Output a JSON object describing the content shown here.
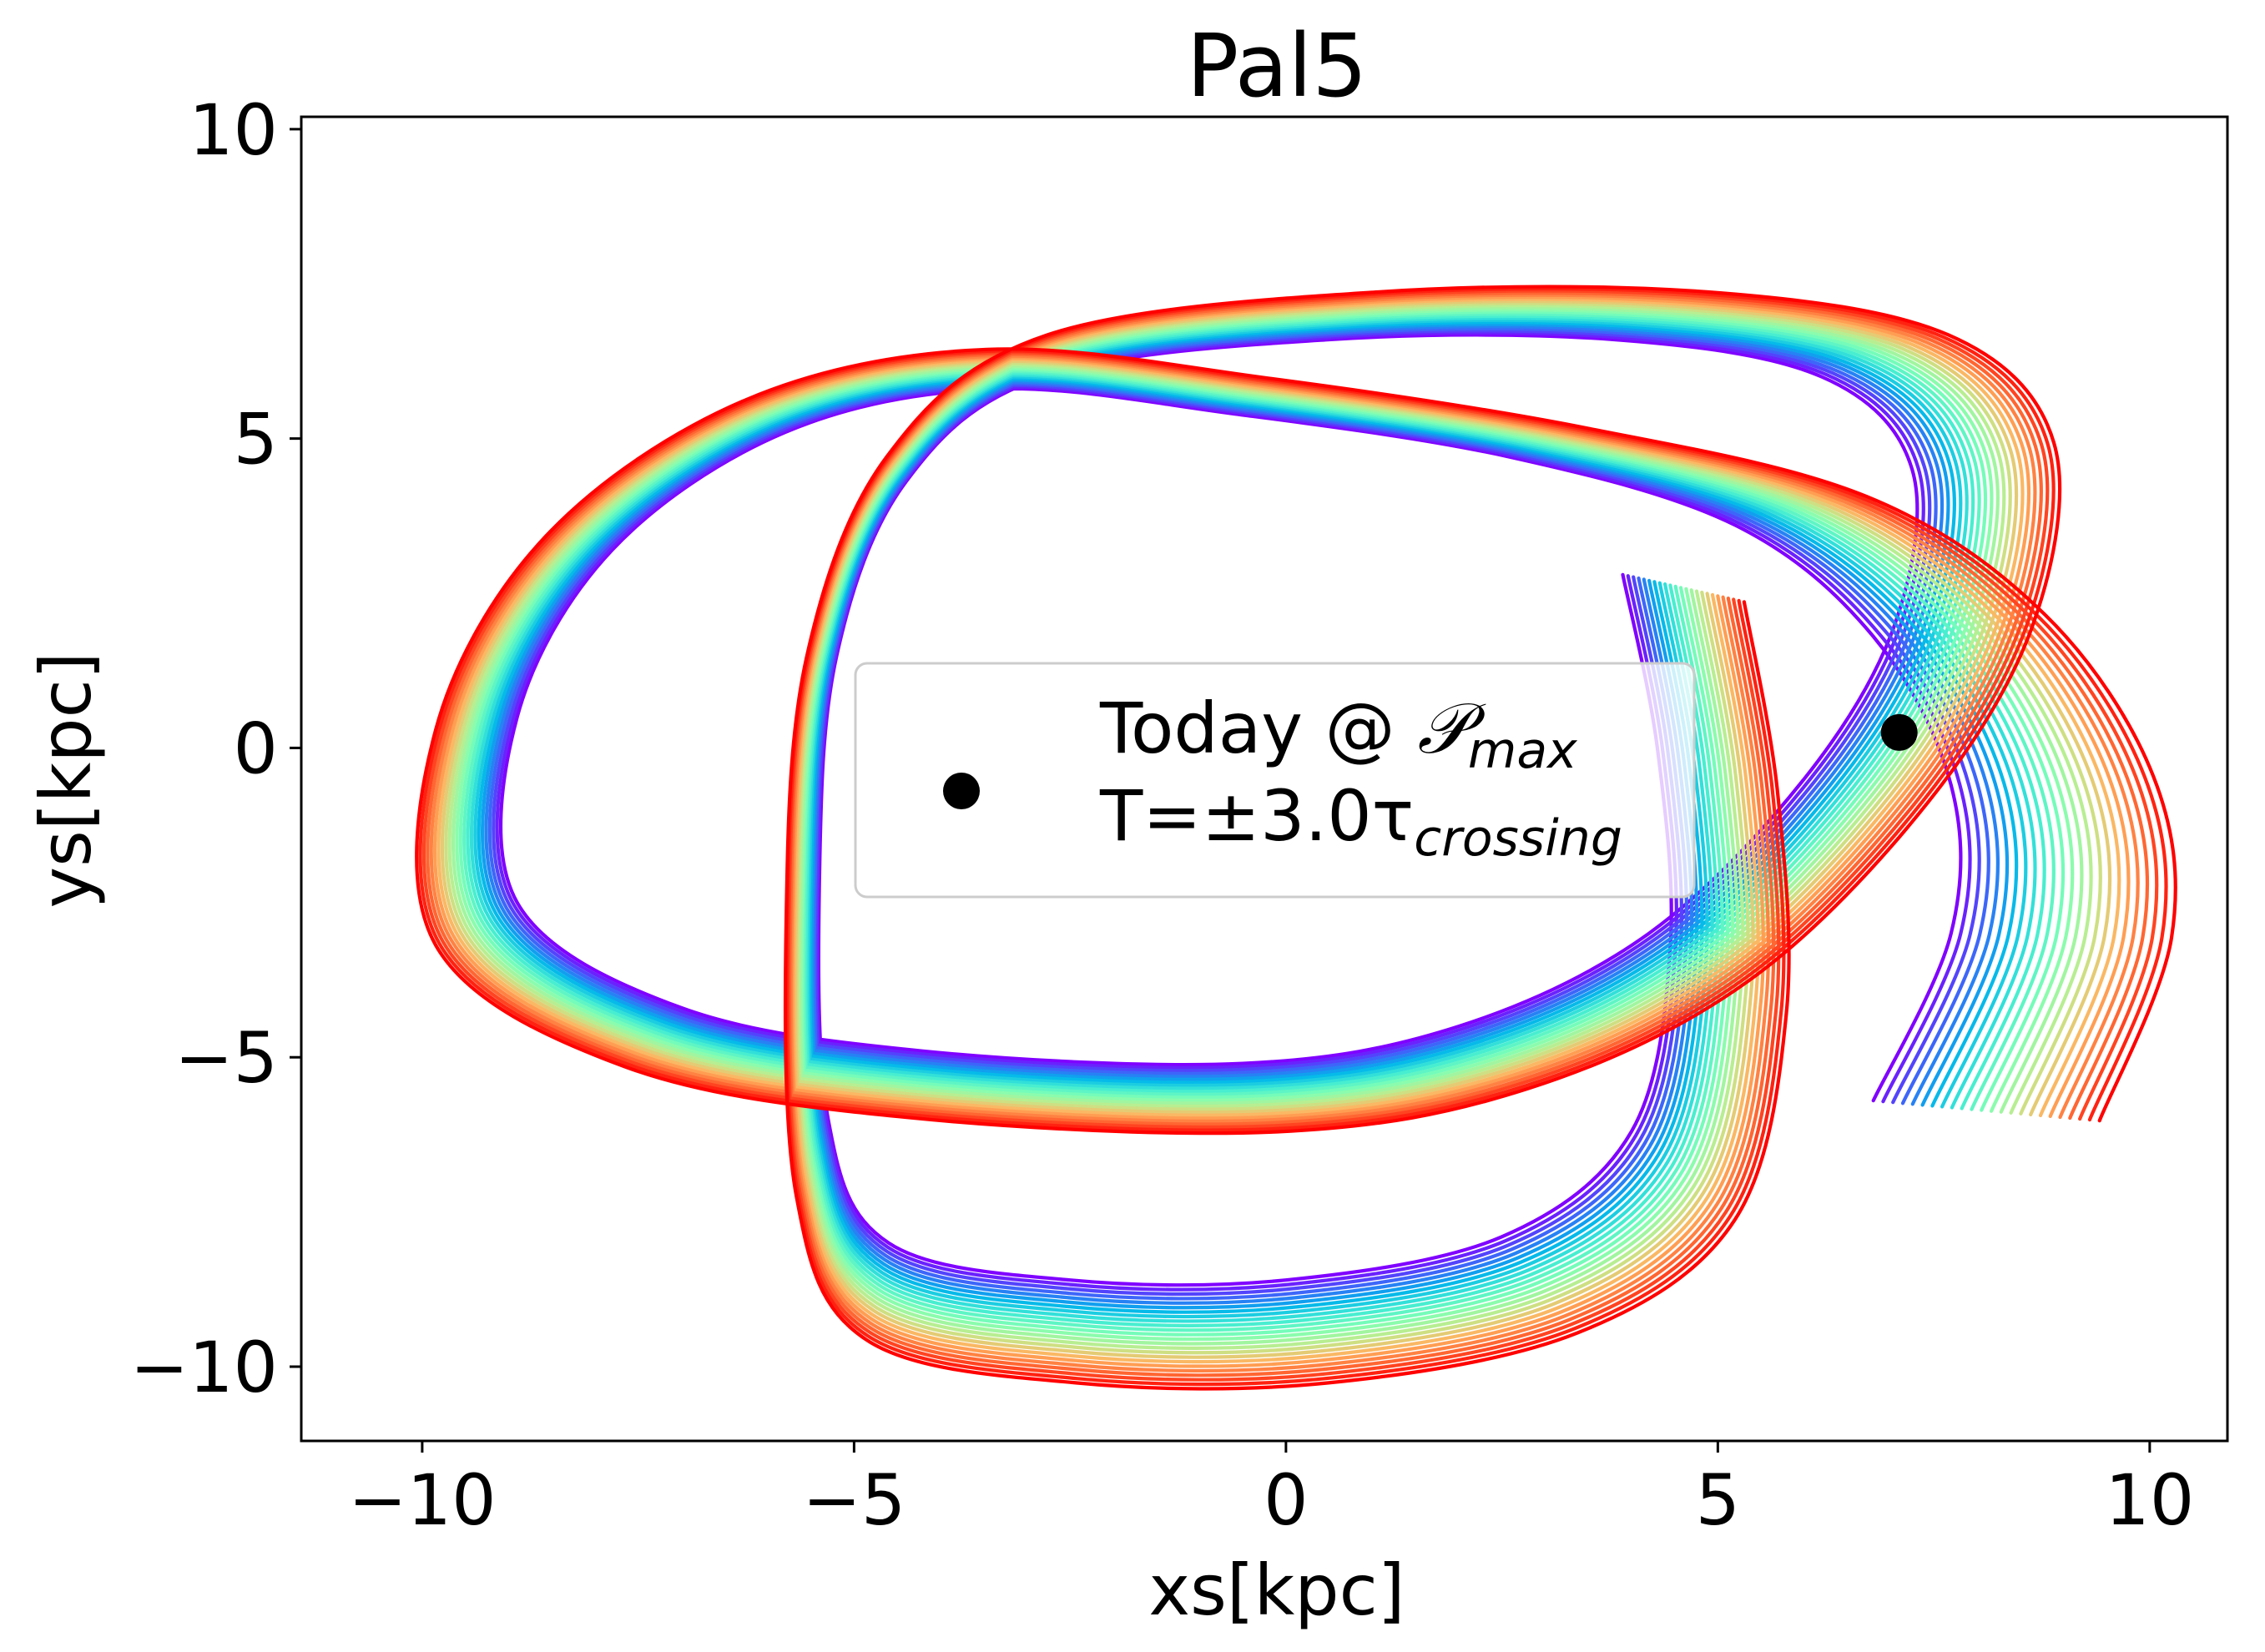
{
  "chart_data": {
    "type": "line",
    "title": "Pal5",
    "xlabel": "xs[kpc]",
    "ylabel": "ys[kpc]",
    "xlim": [
      -11.4,
      10.9
    ],
    "ylim": [
      -11.2,
      10.2
    ],
    "xticks": [
      -10,
      -5,
      0,
      5,
      10
    ],
    "yticks": [
      -10,
      -5,
      0,
      5,
      10
    ],
    "xtick_labels": [
      "−10",
      "−5",
      "0",
      "5",
      "10"
    ],
    "ytick_labels": [
      "−10",
      "−5",
      "0",
      "5",
      "10"
    ],
    "grid": false,
    "colormap": "rainbow",
    "colormap_stops": [
      "#8000ff",
      "#4062fa",
      "#00b5eb",
      "#40ecd4",
      "#80ffb4",
      "#c0eb8d",
      "#ffb360",
      "#ff6230",
      "#ff0000"
    ],
    "orbit_family": {
      "count": 24,
      "note_color_order": "purple innermost to red outermost",
      "prograde_track": {
        "start": [
          3.9,
          2.8
        ],
        "points": [
          [
            3.9,
            2.8
          ],
          [
            4.3,
            0
          ],
          [
            4.45,
            -3.2
          ],
          [
            4.0,
            -6.2
          ],
          [
            2.5,
            -7.9
          ],
          [
            0,
            -8.6
          ],
          [
            -2.5,
            -8.6
          ],
          [
            -4.6,
            -8.0
          ],
          [
            -5.3,
            -6.0
          ],
          [
            -5.4,
            -2.0
          ],
          [
            -5.2,
            1.5
          ],
          [
            -4.4,
            4.3
          ],
          [
            -2.8,
            6.0
          ],
          [
            0.5,
            6.6
          ],
          [
            3.8,
            6.6
          ],
          [
            6.2,
            6.0
          ],
          [
            7.25,
            4.5
          ],
          [
            7.05,
            2.0
          ],
          [
            6.0,
            -0.5
          ],
          [
            4.2,
            -3.0
          ],
          [
            2.0,
            -4.5
          ],
          [
            -0.5,
            -5.1
          ],
          [
            -4.2,
            -4.9
          ],
          [
            -7.0,
            -4.2
          ],
          [
            -8.9,
            -2.5
          ],
          [
            -8.9,
            0.5
          ],
          [
            -7.8,
            3.2
          ],
          [
            -5.8,
            5.1
          ],
          [
            -3.4,
            5.8
          ],
          [
            -0.6,
            5.4
          ],
          [
            2.6,
            4.7
          ],
          [
            5.2,
            3.6
          ],
          [
            6.8,
            1.8
          ],
          [
            7.7,
            -0.6
          ],
          [
            7.7,
            -3.0
          ],
          [
            6.8,
            -5.7
          ]
        ],
        "end": [
          6.8,
          -5.7
        ]
      },
      "spread_kpc": 1.35
    },
    "today_marker": {
      "x": 7.1,
      "y": 0.25,
      "color": "#000000"
    },
    "legend": {
      "placement": "center",
      "line1": "Today @ ",
      "line1_symbol": "𝒫",
      "line1_sub": "max",
      "line2": "T=±3.0τ",
      "line2_sub": "crossing"
    }
  }
}
